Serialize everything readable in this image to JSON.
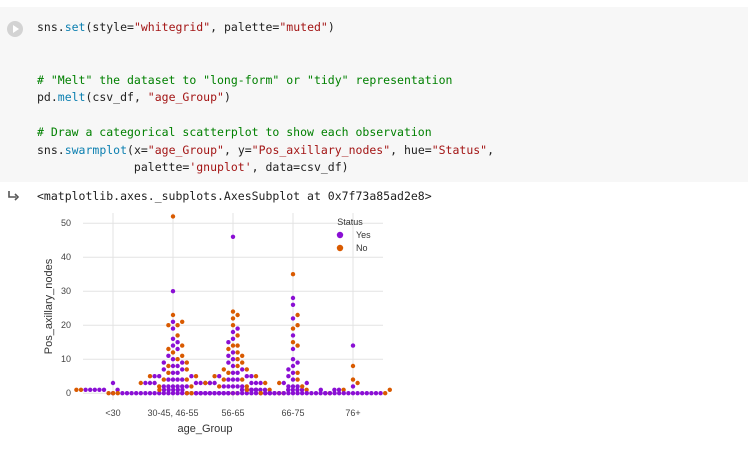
{
  "cell": {
    "code_lines": [
      "sns.set(style=\"whitegrid\", palette=\"muted\")",
      "",
      "",
      "# \"Melt\" the dataset to \"long-form\" or \"tidy\" representation",
      "pd.melt(csv_df, \"age_Group\")",
      "",
      "# Draw a categorical scatterplot to show each observation",
      "sns.swarmplot(x=\"age_Group\", y=\"Pos_axillary_nodes\", hue=\"Status\",",
      "              palette='gnuplot', data=csv_df)"
    ]
  },
  "output": {
    "text": "<matplotlib.axes._subplots.AxesSubplot at 0x7f73a85ad2e8>"
  },
  "chart_data": {
    "type": "scatter",
    "xlabel": "age_Group",
    "ylabel": "Pos_axillary_nodes",
    "categories": [
      "<30",
      "30-45, 46-55",
      "56-65",
      "66-75",
      "76+"
    ],
    "ylim": [
      -2,
      53
    ],
    "yticks": [
      0,
      10,
      20,
      30,
      40,
      50
    ],
    "grid": true,
    "legend": {
      "title": "Status",
      "placement": "top-right",
      "entries": [
        {
          "name": "Yes",
          "color": "#8a0fd4"
        },
        {
          "name": "No",
          "color": "#d95a00"
        }
      ]
    },
    "series": [
      {
        "name": "Yes",
        "color": "#8a0fd4",
        "points": [
          {
            "cat": 0,
            "values": [
              0,
              1,
              3
            ]
          },
          {
            "cat": 1,
            "values": [
              0,
              0,
              0,
              0,
              0,
              0,
              0,
              0,
              0,
              0,
              0,
              0,
              0,
              0,
              0,
              0,
              0,
              0,
              0,
              0,
              0,
              0,
              0,
              0,
              1,
              1,
              1,
              1,
              1,
              1,
              1,
              1,
              1,
              1,
              1,
              2,
              2,
              2,
              2,
              2,
              2,
              3,
              3,
              3,
              3,
              3,
              3,
              4,
              4,
              4,
              4,
              5,
              5,
              5,
              6,
              6,
              7,
              7,
              8,
              8,
              9,
              9,
              10,
              11,
              13,
              14,
              15,
              16,
              19,
              21,
              30
            ]
          },
          {
            "cat": 2,
            "values": [
              0,
              0,
              0,
              0,
              0,
              0,
              0,
              0,
              0,
              0,
              0,
              0,
              0,
              0,
              0,
              0,
              0,
              0,
              1,
              1,
              1,
              1,
              1,
              1,
              1,
              1,
              1,
              2,
              2,
              2,
              2,
              2,
              3,
              3,
              3,
              3,
              3,
              4,
              4,
              4,
              5,
              5,
              5,
              6,
              6,
              7,
              8,
              9,
              10,
              11,
              12,
              15,
              16,
              18,
              19,
              46
            ]
          },
          {
            "cat": 3,
            "values": [
              0,
              0,
              0,
              0,
              0,
              0,
              0,
              0,
              0,
              0,
              0,
              0,
              0,
              0,
              1,
              1,
              1,
              1,
              2,
              2,
              2,
              3,
              3,
              4,
              5,
              6,
              7,
              8,
              9,
              10,
              13,
              17,
              22,
              26,
              28
            ]
          },
          {
            "cat": 4,
            "values": [
              0,
              0,
              0,
              0,
              0,
              0,
              0,
              0,
              0,
              0,
              0,
              0,
              0,
              1,
              2,
              14
            ]
          }
        ]
      },
      {
        "name": "No",
        "color": "#d95a00",
        "points": [
          {
            "cat": 1,
            "values": [
              0,
              0,
              0,
              0,
              0,
              1,
              1,
              1,
              2,
              2,
              3,
              3,
              4,
              4,
              5,
              5,
              6,
              7,
              8,
              9,
              10,
              11,
              12,
              13,
              14,
              17,
              20,
              20,
              21,
              23,
              52
            ]
          },
          {
            "cat": 2,
            "values": [
              0,
              0,
              0,
              0,
              1,
              1,
              2,
              2,
              3,
              3,
              4,
              4,
              5,
              5,
              6,
              7,
              7,
              8,
              9,
              10,
              11,
              12,
              13,
              14,
              14,
              17,
              20,
              22,
              23,
              24
            ]
          },
          {
            "cat": 3,
            "values": [
              0,
              0,
              1,
              1,
              2,
              3,
              4,
              6,
              14,
              15,
              19,
              20,
              23,
              35
            ]
          },
          {
            "cat": 4,
            "values": [
              0,
              1,
              3,
              4,
              8
            ]
          }
        ]
      }
    ]
  }
}
